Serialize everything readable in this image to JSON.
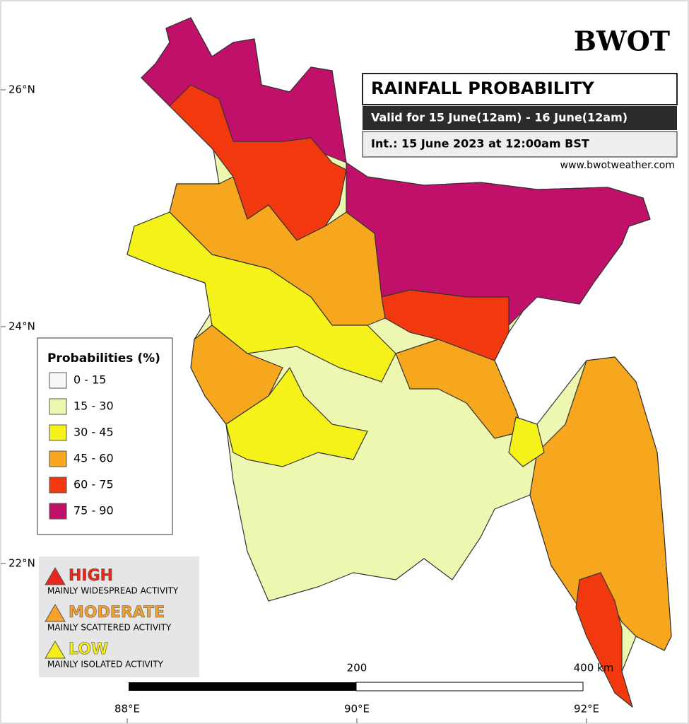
{
  "header": {
    "logo": "BWOT",
    "title": "RAINFALL PROBABILITY",
    "valid": "Valid for 15 June(12am) - 16 June(12am)",
    "init": "Int.: 15 June 2023 at 12:00am BST",
    "website": "www.bwotweather.com"
  },
  "legend": {
    "title": "Probabilities (%)",
    "items": [
      {
        "label": "0 - 15",
        "color": "#f7f7f7"
      },
      {
        "label": "15 - 30",
        "color": "#eef7b0"
      },
      {
        "label": "30 - 45",
        "color": "#f5f21a"
      },
      {
        "label": "45 - 60",
        "color": "#f7a71d"
      },
      {
        "label": "60 - 75",
        "color": "#f2380f"
      },
      {
        "label": "75 - 90",
        "color": "#c0106a"
      }
    ]
  },
  "risk": [
    {
      "level": "HIGH",
      "description": "MAINLY WIDESPREAD ACTIVITY",
      "color": "#e8281c"
    },
    {
      "level": "MODERATE",
      "description": "MAINLY SCATTERED ACTIVITY",
      "color": "#f7a12a"
    },
    {
      "level": "LOW",
      "description": "MAINLY ISOLATED ACTIVITY",
      "color": "#f5ee1a"
    }
  ],
  "latitudes": [
    "26°N",
    "24°N",
    "22°N"
  ],
  "longitudes": [
    "88°E",
    "90°E",
    "92°E"
  ],
  "scale": [
    "200",
    "400 km"
  ]
}
